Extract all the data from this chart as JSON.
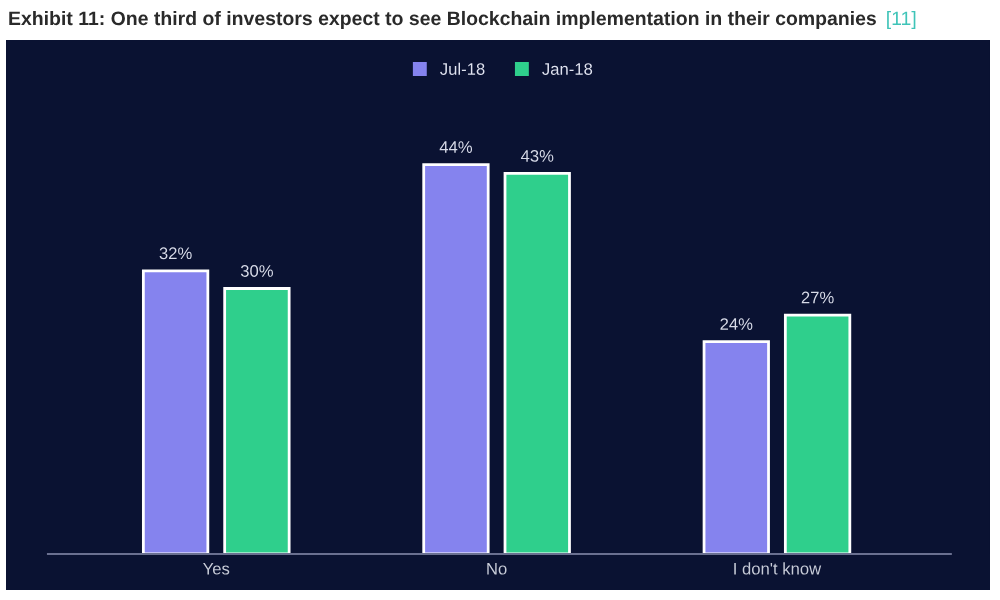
{
  "chart_data": {
    "type": "bar",
    "title": "Exhibit 11: One third of investors expect to see Blockchain implementation in their companies",
    "annotations": [
      "[11]"
    ],
    "categories": [
      "Yes",
      "No",
      "I don't know"
    ],
    "series": [
      {
        "name": "Jul-18",
        "color": "#8583ee",
        "values": [
          32,
          44,
          24
        ],
        "value_labels": [
          "32%",
          "44%",
          "24%"
        ]
      },
      {
        "name": "Jan-18",
        "color": "#2fcf8c",
        "values": [
          30,
          43,
          27
        ],
        "value_labels": [
          "30%",
          "43%",
          "27%"
        ]
      }
    ],
    "legend": "top",
    "grid": false
  }
}
